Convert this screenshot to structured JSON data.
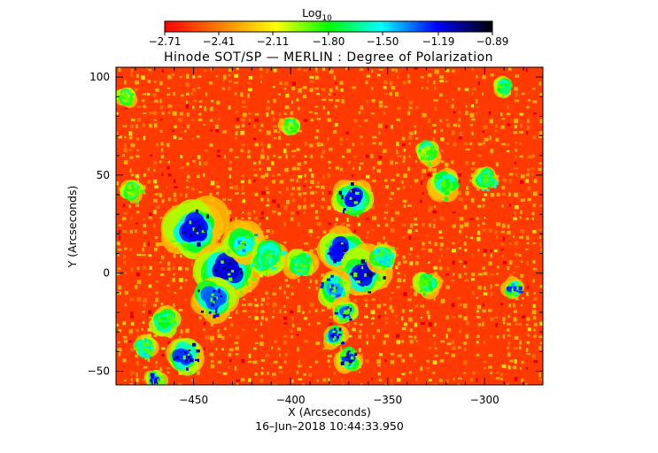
{
  "chart_data": {
    "type": "heatmap",
    "title": "Hinode SOT/SP — MERLIN : Degree of Polarization",
    "xlabel": "X (Arcseconds)",
    "ylabel": "Y (Arcseconds)",
    "timestamp": "16–Jun–2018 10:44:33.950",
    "xlim": [
      -490,
      -270
    ],
    "ylim": [
      -57,
      105
    ],
    "x_ticks": [
      -450,
      -400,
      -350,
      -300
    ],
    "x_tick_labels": [
      "−450",
      "−400",
      "−350",
      "−300"
    ],
    "y_ticks": [
      -50,
      0,
      50,
      100
    ],
    "y_tick_labels": [
      "−50",
      "0",
      "50",
      "100"
    ],
    "colorbar": {
      "label": "Log",
      "label_sub": "10",
      "min": -2.71,
      "max": -0.89,
      "ticks": [
        -2.71,
        -2.41,
        -2.11,
        -1.8,
        -1.5,
        -1.19,
        -0.89
      ],
      "tick_labels": [
        "−2.71",
        "−2.41",
        "−2.11",
        "−1.80",
        "−1.50",
        "−1.19",
        "−0.89"
      ],
      "colormap": [
        "#ffffff",
        "#ff0000",
        "#ff7f00",
        "#ffff00",
        "#00ff00",
        "#00ffff",
        "#0000ff",
        "#000000"
      ]
    },
    "high_polarization_regions": [
      {
        "x": -450,
        "y": 22,
        "r": 12,
        "value": -1.2
      },
      {
        "x": -432,
        "y": 2,
        "r": 13,
        "value": -1.15
      },
      {
        "x": -440,
        "y": -12,
        "r": 9,
        "value": -1.3
      },
      {
        "x": -425,
        "y": 15,
        "r": 8,
        "value": -1.5
      },
      {
        "x": -412,
        "y": 8,
        "r": 8,
        "value": -1.7
      },
      {
        "x": -465,
        "y": -25,
        "r": 6,
        "value": -1.8
      },
      {
        "x": -475,
        "y": -38,
        "r": 5,
        "value": -1.6
      },
      {
        "x": -455,
        "y": -42,
        "r": 8,
        "value": -1.25
      },
      {
        "x": -470,
        "y": -54,
        "r": 4,
        "value": -1.3
      },
      {
        "x": -368,
        "y": 38,
        "r": 8,
        "value": -1.2
      },
      {
        "x": -374,
        "y": 12,
        "r": 9,
        "value": -1.2
      },
      {
        "x": -362,
        "y": 0,
        "r": 10,
        "value": -1.15
      },
      {
        "x": -378,
        "y": -8,
        "r": 7,
        "value": -1.4
      },
      {
        "x": -372,
        "y": -20,
        "r": 5,
        "value": -1.3
      },
      {
        "x": -378,
        "y": -32,
        "r": 5,
        "value": -1.3
      },
      {
        "x": -370,
        "y": -44,
        "r": 5,
        "value": -1.25
      },
      {
        "x": -352,
        "y": 8,
        "r": 6,
        "value": -1.6
      },
      {
        "x": -395,
        "y": 5,
        "r": 6,
        "value": -1.7
      },
      {
        "x": -320,
        "y": 45,
        "r": 6,
        "value": -1.9
      },
      {
        "x": -300,
        "y": 48,
        "r": 5,
        "value": -1.7
      },
      {
        "x": -330,
        "y": 62,
        "r": 5,
        "value": -2.0
      },
      {
        "x": -285,
        "y": -8,
        "r": 4,
        "value": -1.4
      },
      {
        "x": -330,
        "y": -5,
        "r": 5,
        "value": -1.9
      },
      {
        "x": -290,
        "y": 95,
        "r": 4,
        "value": -1.8
      },
      {
        "x": -485,
        "y": 90,
        "r": 4,
        "value": -2.0
      },
      {
        "x": -482,
        "y": 42,
        "r": 5,
        "value": -2.0
      },
      {
        "x": -400,
        "y": 75,
        "r": 4,
        "value": -2.0
      }
    ]
  }
}
